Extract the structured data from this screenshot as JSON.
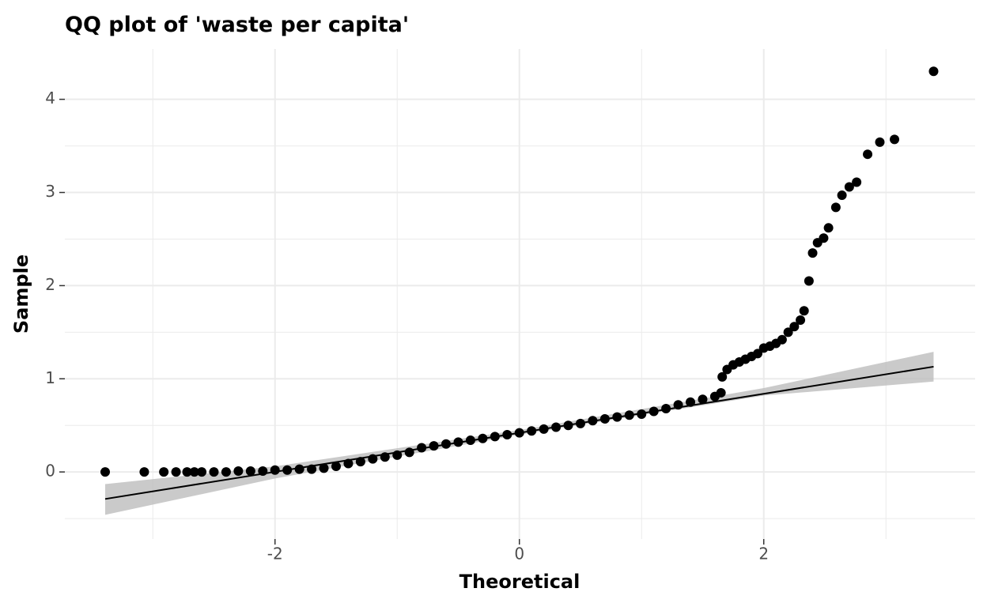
{
  "chart_data": {
    "type": "qq",
    "title": "QQ plot of 'waste per capita'",
    "x_label": "Theoretical",
    "y_label": "Sample",
    "xlim": [
      -3.72,
      3.73
    ],
    "ylim": [
      -0.72,
      4.54
    ],
    "xticks": [
      -2,
      0,
      2
    ],
    "yticks": [
      0,
      1,
      2,
      3,
      4
    ],
    "x_minor_grid": [
      -3,
      -1,
      1,
      3
    ],
    "y_minor_grid": [
      -0.5,
      0.5,
      1.5,
      2.5,
      3.5
    ],
    "grid": true,
    "point_color": "#000000",
    "line_color": "#000000",
    "band_color": "#bdbdbd",
    "x": [
      -3.39,
      -3.07,
      -2.91,
      -2.81,
      -2.72,
      -2.66,
      -2.6,
      -2.5,
      -2.4,
      -2.3,
      -2.2,
      -2.1,
      -2.0,
      -1.9,
      -1.8,
      -1.7,
      -1.6,
      -1.5,
      -1.4,
      -1.3,
      -1.2,
      -1.1,
      -1.0,
      -0.9,
      -0.8,
      -0.7,
      -0.6,
      -0.5,
      -0.4,
      -0.3,
      -0.2,
      -0.1,
      0,
      0.1,
      0.2,
      0.3,
      0.4,
      0.5,
      0.6,
      0.7,
      0.8,
      0.9,
      1.0,
      1.1,
      1.2,
      1.3,
      1.4,
      1.5,
      1.6,
      1.65,
      1.66,
      1.7,
      1.75,
      1.8,
      1.85,
      1.9,
      1.95,
      2.0,
      2.05,
      2.1,
      2.15,
      2.2,
      2.25,
      2.3,
      2.33,
      2.37,
      2.4,
      2.44,
      2.49,
      2.53,
      2.59,
      2.64,
      2.7,
      2.76,
      2.85,
      2.95,
      3.07,
      3.39
    ],
    "values": [
      0,
      0,
      0,
      0,
      0,
      0,
      0,
      0,
      0,
      0.01,
      0.01,
      0.01,
      0.02,
      0.02,
      0.03,
      0.03,
      0.04,
      0.06,
      0.09,
      0.11,
      0.14,
      0.16,
      0.18,
      0.21,
      0.26,
      0.28,
      0.3,
      0.32,
      0.34,
      0.36,
      0.38,
      0.4,
      0.42,
      0.44,
      0.46,
      0.48,
      0.5,
      0.52,
      0.55,
      0.57,
      0.59,
      0.61,
      0.62,
      0.65,
      0.68,
      0.72,
      0.75,
      0.78,
      0.81,
      0.85,
      1.02,
      1.1,
      1.15,
      1.18,
      1.21,
      1.24,
      1.27,
      1.33,
      1.35,
      1.38,
      1.42,
      1.5,
      1.56,
      1.63,
      1.73,
      2.05,
      2.35,
      2.46,
      2.51,
      2.62,
      2.84,
      2.97,
      3.06,
      3.11,
      3.41,
      3.54,
      3.57,
      4.3
    ],
    "band": {
      "x": [
        -3.39,
        -2,
        0,
        2,
        3.39
      ],
      "lower": [
        -0.46,
        -0.07,
        0.4,
        0.82,
        0.97
      ],
      "upper": [
        -0.13,
        0.06,
        0.45,
        0.9,
        1.29
      ]
    },
    "reference_line": {
      "x": [
        -3.39,
        3.39
      ],
      "y": [
        -0.29,
        1.13
      ]
    }
  }
}
